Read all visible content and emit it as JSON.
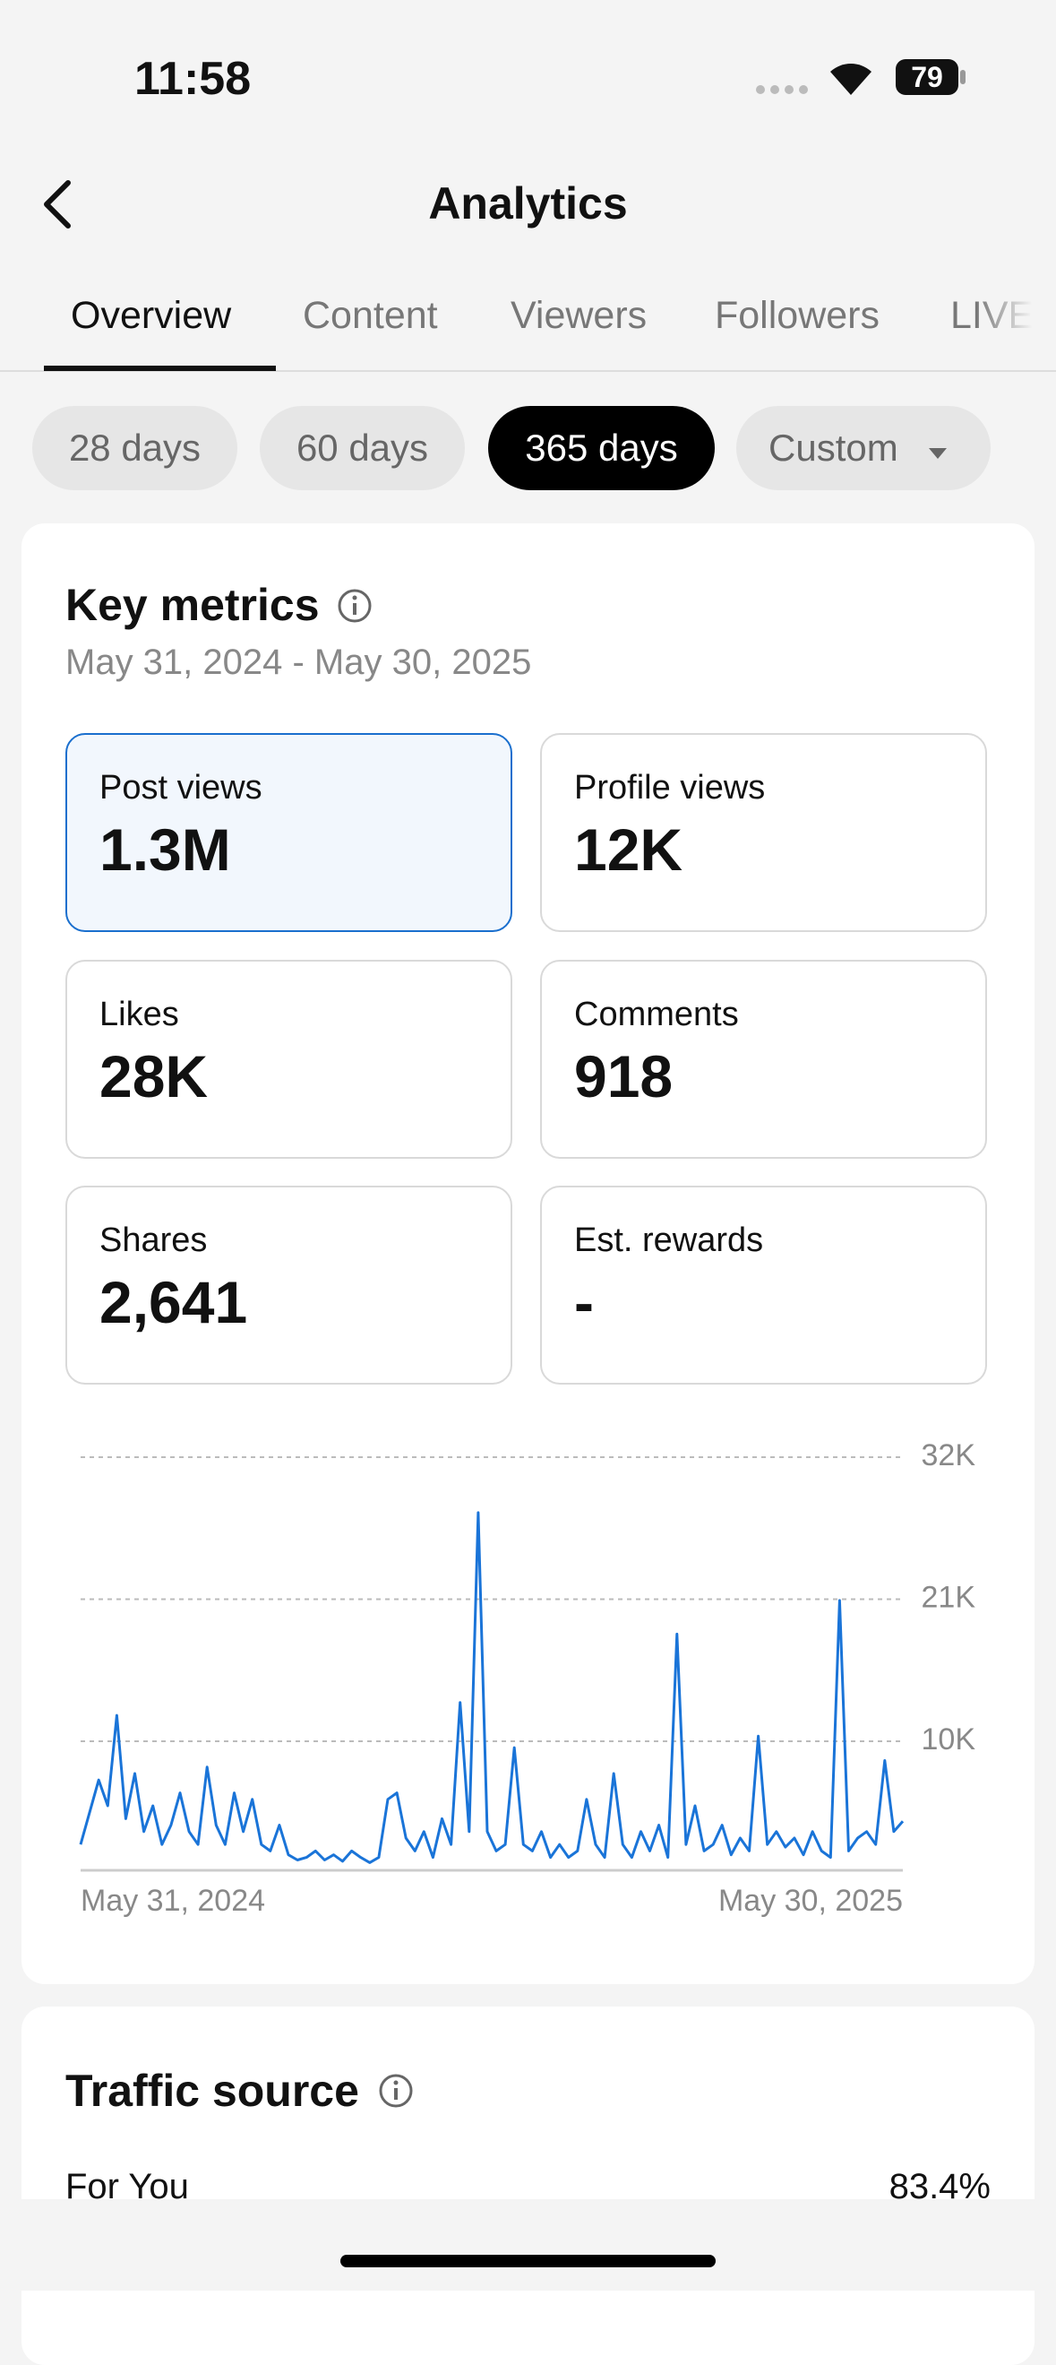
{
  "status": {
    "time": "11:58",
    "battery": "79"
  },
  "header": {
    "title": "Analytics"
  },
  "tabs": [
    "Overview",
    "Content",
    "Viewers",
    "Followers",
    "LIVE"
  ],
  "ranges": [
    "28 days",
    "60 days",
    "365 days",
    "Custom"
  ],
  "key_metrics": {
    "title": "Key metrics",
    "date_range": "May 31, 2024 - May 30, 2025",
    "metrics": [
      {
        "label": "Post views",
        "value": "1.3M"
      },
      {
        "label": "Profile views",
        "value": "12K"
      },
      {
        "label": "Likes",
        "value": "28K"
      },
      {
        "label": "Comments",
        "value": "918"
      },
      {
        "label": "Shares",
        "value": "2,641"
      },
      {
        "label": "Est. rewards",
        "value": "-"
      }
    ]
  },
  "chart_data": {
    "type": "line",
    "color": "#1a74d8",
    "grid": true,
    "categories": [
      "May 31, 2024",
      null,
      null,
      null,
      null,
      null,
      null,
      null,
      null,
      null,
      null,
      null,
      null,
      null,
      null,
      null,
      null,
      null,
      null,
      null,
      null,
      null,
      null,
      null,
      null,
      null,
      null,
      null,
      null,
      null,
      null,
      null,
      null,
      null,
      null,
      null,
      null,
      null,
      null,
      null,
      null,
      null,
      null,
      null,
      null,
      null,
      null,
      null,
      null,
      null,
      null,
      null,
      null,
      null,
      null,
      null,
      null,
      null,
      null,
      null,
      null,
      null,
      null,
      null,
      null,
      null,
      null,
      null,
      null,
      null,
      null,
      null,
      null,
      null,
      null,
      null,
      null,
      null,
      null,
      null,
      null,
      null,
      null,
      null,
      null,
      null,
      null,
      null,
      null,
      null,
      null,
      "May 30, 2025"
    ],
    "values": [
      2000,
      4500,
      7000,
      5000,
      12000,
      4000,
      7500,
      3000,
      5000,
      2000,
      3500,
      6000,
      3000,
      2000,
      8000,
      3500,
      2000,
      6000,
      3000,
      5500,
      2000,
      1500,
      3500,
      1200,
      800,
      1000,
      1500,
      800,
      1200,
      700,
      1500,
      1000,
      600,
      1000,
      5500,
      6000,
      2500,
      1500,
      3000,
      1000,
      4000,
      2000,
      13000,
      3000,
      27700,
      3000,
      1500,
      2000,
      9500,
      2000,
      1500,
      3000,
      1000,
      2000,
      1000,
      1500,
      5500,
      2000,
      1000,
      7500,
      2000,
      1000,
      3000,
      1500,
      3500,
      1000,
      18300,
      2000,
      5000,
      1500,
      2000,
      3500,
      1200,
      2500,
      1500,
      10400,
      2000,
      3000,
      1800,
      2500,
      1200,
      3000,
      1500,
      1000,
      20900,
      1500,
      2500,
      3000,
      2000,
      8500,
      3000,
      3800
    ],
    "ylim": [
      0,
      32000
    ],
    "yticks": [
      {
        "value": 10000,
        "label": "10K"
      },
      {
        "value": 21000,
        "label": "21K"
      },
      {
        "value": 32000,
        "label": "32K"
      }
    ]
  },
  "traffic_source": {
    "title": "Traffic source",
    "rows": [
      {
        "label": "For You",
        "value": "83.4%"
      }
    ]
  }
}
